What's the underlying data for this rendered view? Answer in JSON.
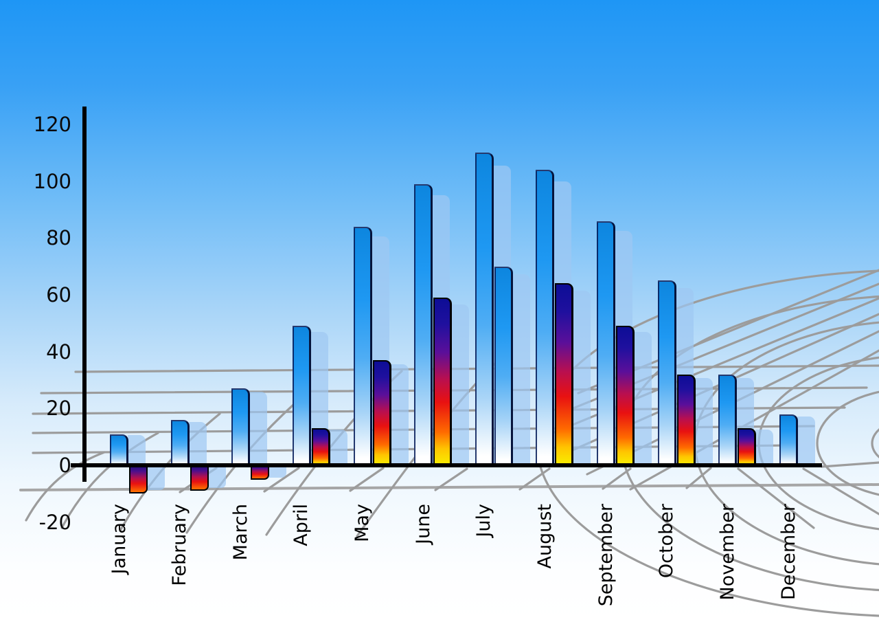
{
  "chart_data": {
    "type": "bar",
    "title": "",
    "xlabel": "",
    "ylabel": "",
    "categories": [
      "January",
      "February",
      "March",
      "April",
      "May",
      "June",
      "July",
      "August",
      "September",
      "October",
      "November",
      "December"
    ],
    "series": [
      {
        "name": "series-1-blue-gradient",
        "values": [
          11,
          16,
          27,
          49,
          84,
          99,
          110,
          104,
          86,
          65,
          32,
          18
        ]
      },
      {
        "name": "series-2-multicolor-gradient",
        "values": [
          -10,
          -9,
          -5,
          13,
          37,
          59,
          70,
          64,
          49,
          32,
          13,
          null
        ],
        "bar_styles": [
          "multi",
          "multi",
          "multi",
          "multi",
          "multi",
          "multi",
          "blue",
          "multi",
          "multi",
          "multi",
          "multi",
          null
        ]
      }
    ],
    "y_ticks": [
      "120",
      "100",
      "80",
      "60",
      "40",
      "20",
      "0",
      "-20"
    ],
    "ylim": [
      -20,
      120
    ],
    "legend": "none",
    "grid": "curved gray perspective floor grid behind bars",
    "extras": "each bar has a translucent light-blue echo bar offset to its right"
  },
  "colors": {
    "sky_top": "#1E96F5",
    "sky_bottom": "#FFFFFF",
    "bar_blue_top": "#0d86df",
    "bar_blue_bottom": "#ffffff",
    "multi_gradient": [
      "#0d0d96",
      "#5a0f9a",
      "#e81111",
      "#ff6a00",
      "#f8f000"
    ],
    "echo_bar": "#9EC8F2",
    "grid_gray": "#9c9c9c",
    "axis_black": "#000000"
  }
}
